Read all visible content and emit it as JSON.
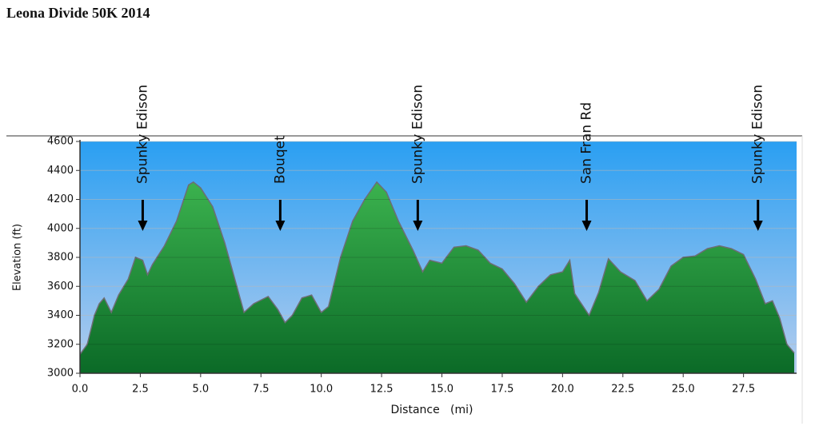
{
  "chart_data": {
    "type": "area",
    "title": "Leona Divide 50K 2014",
    "x_label": "Distance   (mi)",
    "y_label": "Elevation (ft)",
    "x": [
      0,
      0.3,
      0.6,
      0.8,
      1.0,
      1.3,
      1.6,
      2.0,
      2.3,
      2.6,
      2.8,
      3.0,
      3.5,
      4.0,
      4.5,
      4.7,
      5.0,
      5.5,
      6.0,
      6.5,
      6.8,
      7.2,
      7.8,
      8.2,
      8.5,
      8.8,
      9.2,
      9.6,
      10.0,
      10.3,
      10.8,
      11.3,
      11.8,
      12.3,
      12.7,
      13.2,
      13.8,
      14.2,
      14.5,
      15.0,
      15.5,
      16.0,
      16.5,
      17.0,
      17.5,
      18.0,
      18.5,
      19.0,
      19.5,
      20.0,
      20.3,
      20.5,
      20.7,
      21.1,
      21.5,
      21.9,
      22.4,
      23.0,
      23.5,
      24.0,
      24.5,
      25.0,
      25.5,
      26.0,
      26.5,
      27.0,
      27.5,
      28.0,
      28.4,
      28.7,
      29.0,
      29.3,
      29.6
    ],
    "y": [
      3130,
      3200,
      3400,
      3480,
      3520,
      3420,
      3540,
      3650,
      3800,
      3780,
      3680,
      3750,
      3880,
      4050,
      4300,
      4320,
      4280,
      4150,
      3900,
      3600,
      3420,
      3480,
      3530,
      3440,
      3350,
      3400,
      3520,
      3540,
      3420,
      3460,
      3800,
      4050,
      4200,
      4320,
      4250,
      4050,
      3850,
      3700,
      3780,
      3760,
      3870,
      3880,
      3850,
      3760,
      3720,
      3620,
      3490,
      3600,
      3680,
      3700,
      3780,
      3550,
      3500,
      3400,
      3560,
      3790,
      3700,
      3640,
      3500,
      3580,
      3740,
      3800,
      3810,
      3860,
      3880,
      3860,
      3820,
      3650,
      3480,
      3500,
      3380,
      3200,
      3140
    ],
    "color": "#28a640",
    "xlim": [
      0,
      29.7
    ],
    "ylim": [
      3000,
      4600
    ],
    "xticks": [
      {
        "value": 0,
        "label": "0.0"
      },
      2.5,
      {
        "value": 5,
        "label": "5.0"
      },
      7.5,
      {
        "value": 10,
        "label": "10.0"
      },
      12.5,
      {
        "value": 15,
        "label": "15.0"
      },
      17.5,
      {
        "value": 20,
        "label": "20.0"
      },
      22.5,
      {
        "value": 25,
        "label": "25.0"
      },
      27.5
    ],
    "yticks": [
      3000,
      3200,
      3400,
      3600,
      3800,
      4000,
      4200,
      4400,
      4600
    ],
    "grid": true,
    "annotations": [
      {
        "label": "Spunky Edison",
        "x": 2.6
      },
      {
        "label": "Bouqet",
        "x": 8.3
      },
      {
        "label": "Spunky Edison",
        "x": 14.0
      },
      {
        "label": "San Fran Rd",
        "x": 21.0
      },
      {
        "label": "Spunky Edison",
        "x": 28.1
      }
    ]
  }
}
